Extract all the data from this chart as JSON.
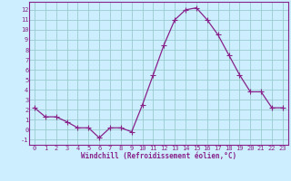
{
  "hours": [
    0,
    1,
    2,
    3,
    4,
    5,
    6,
    7,
    8,
    9,
    10,
    11,
    12,
    13,
    14,
    15,
    16,
    17,
    18,
    19,
    20,
    21,
    22,
    23
  ],
  "values": [
    2.2,
    1.3,
    1.3,
    0.8,
    0.2,
    0.2,
    -0.8,
    0.2,
    0.2,
    -0.2,
    2.5,
    5.5,
    8.5,
    11.0,
    12.0,
    12.2,
    11.0,
    9.5,
    7.5,
    5.5,
    3.8,
    3.8,
    2.2,
    2.2
  ],
  "line_color": "#882288",
  "marker": "+",
  "marker_size": 4,
  "bg_color": "#cceeff",
  "grid_color": "#99cccc",
  "xlabel": "Windchill (Refroidissement éolien,°C)",
  "xlabel_color": "#882288",
  "tick_color": "#882288",
  "spine_color": "#882288",
  "xlim": [
    -0.5,
    23.5
  ],
  "ylim": [
    -1.5,
    12.8
  ],
  "yticks": [
    -1,
    0,
    1,
    2,
    3,
    4,
    5,
    6,
    7,
    8,
    9,
    10,
    11,
    12
  ],
  "xticks": [
    0,
    1,
    2,
    3,
    4,
    5,
    6,
    7,
    8,
    9,
    10,
    11,
    12,
    13,
    14,
    15,
    16,
    17,
    18,
    19,
    20,
    21,
    22,
    23
  ],
  "tick_fontsize": 5.0,
  "xlabel_fontsize": 5.5
}
